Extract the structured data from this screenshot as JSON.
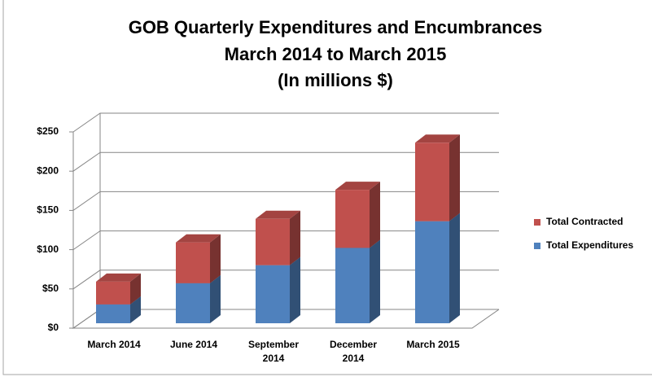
{
  "chart_data": {
    "type": "bar3d_stacked",
    "title": [
      "GOB Quarterly Expenditures and Encumbrances",
      "March 2014 to March 2015",
      "(In millions $)"
    ],
    "categories": [
      "March 2014",
      "June 2014",
      "September 2014",
      "December 2014",
      "March 2015"
    ],
    "series": [
      {
        "name": "Total Expenditures",
        "color": "#4f81bd",
        "values": [
          24,
          51,
          74,
          96,
          130
        ]
      },
      {
        "name": "Total Contracted",
        "color": "#c0504d",
        "values": [
          29,
          52,
          59,
          74,
          100
        ]
      }
    ],
    "ylim": [
      0,
      250
    ],
    "yticks": [
      {
        "value": 0,
        "label": "$0"
      },
      {
        "value": 50,
        "label": "$50"
      },
      {
        "value": 100,
        "label": "$100"
      },
      {
        "value": 150,
        "label": "$150"
      },
      {
        "value": 200,
        "label": "$200"
      },
      {
        "value": 250,
        "label": "$250"
      }
    ],
    "grid": true,
    "legend": "right"
  }
}
